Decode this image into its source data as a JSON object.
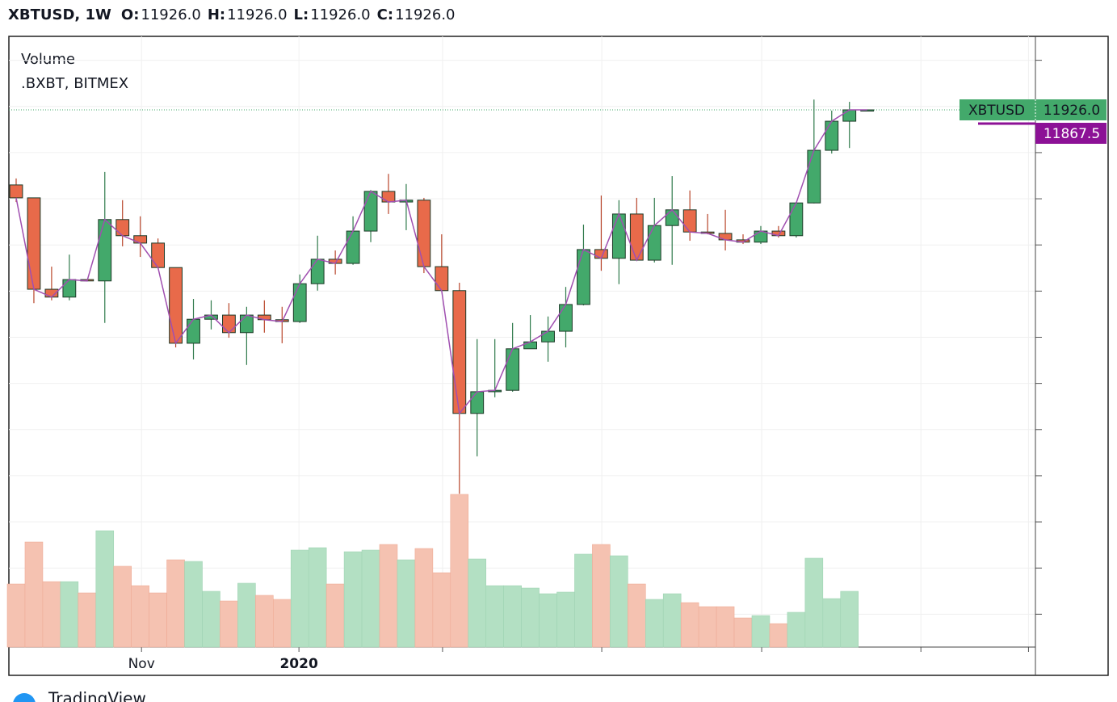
{
  "header": {
    "symbol": "XBTUSD, 1W",
    "ohlc": [
      {
        "name": "O:",
        "value": 11926,
        "label": "11926.0"
      },
      {
        "name": "H:",
        "value": 11926,
        "label": "11926.0"
      },
      {
        "name": "L:",
        "value": 11926,
        "label": "11926.0"
      },
      {
        "name": "C:",
        "value": 11926,
        "label": "11926.0"
      }
    ]
  },
  "chart_data": {
    "type": "candlestick",
    "overlay_title": "Volume",
    "overlay_source": ".BXBT, BITMEX",
    "x": [
      0,
      1,
      2,
      3,
      4,
      5,
      6,
      7,
      8,
      9,
      10,
      11,
      12,
      13,
      14,
      15,
      16,
      17,
      18,
      19,
      20,
      21,
      22,
      23,
      24,
      25,
      26,
      27,
      28,
      29,
      30,
      31,
      32,
      33,
      34,
      35,
      36,
      37,
      38,
      39,
      40,
      41,
      42,
      43,
      44,
      45,
      46,
      47,
      48
    ],
    "open": [
      10300,
      10020,
      8040,
      7870,
      8250,
      8220,
      9550,
      9200,
      9040,
      8510,
      6870,
      7390,
      7480,
      7100,
      7480,
      7380,
      7340,
      8160,
      8690,
      8600,
      9300,
      10160,
      9930,
      9970,
      8530,
      8010,
      5350,
      5820,
      5850,
      6750,
      6900,
      7130,
      7710,
      8900,
      8710,
      9670,
      8670,
      9420,
      9760,
      9280,
      9250,
      9110,
      9060,
      9300,
      9200,
      9910,
      11050,
      11680,
      11926
    ],
    "high": [
      10440,
      10020,
      8530,
      8790,
      8250,
      10580,
      9970,
      9620,
      9140,
      8510,
      7830,
      7800,
      7740,
      7660,
      7800,
      7660,
      8360,
      9200,
      8880,
      9620,
      10190,
      10540,
      10320,
      10020,
      9230,
      8180,
      6960,
      6960,
      7310,
      7480,
      7450,
      8090,
      9440,
      10070,
      9970,
      10020,
      10020,
      10490,
      10180,
      9670,
      9760,
      9230,
      9410,
      9410,
      9930,
      12150,
      11910,
      12100,
      11926
    ],
    "low": [
      9930,
      7740,
      7800,
      7800,
      8220,
      7310,
      8970,
      8740,
      8500,
      6780,
      6520,
      7170,
      6990,
      6400,
      7100,
      6870,
      7310,
      8010,
      8360,
      8570,
      9060,
      9670,
      9320,
      8390,
      8010,
      3610,
      4420,
      5700,
      5820,
      6750,
      6470,
      6780,
      7690,
      8440,
      8150,
      8670,
      8620,
      8570,
      9090,
      9230,
      8880,
      9020,
      9020,
      9160,
      9160,
      9900,
      10980,
      11100,
      11926
    ],
    "close": [
      10020,
      8040,
      7870,
      8250,
      8220,
      9550,
      9200,
      9040,
      8510,
      6870,
      7390,
      7480,
      7100,
      7480,
      7380,
      7340,
      8160,
      8690,
      8600,
      9300,
      10160,
      9930,
      9970,
      8530,
      8010,
      5350,
      5820,
      5850,
      6750,
      6900,
      7130,
      7710,
      8900,
      8710,
      9670,
      8670,
      9420,
      9760,
      9280,
      9250,
      9110,
      9060,
      9300,
      9200,
      9910,
      11050,
      11680,
      11926,
      11926
    ],
    "volume": [
      78,
      130,
      81,
      81,
      67,
      144,
      100,
      76,
      67,
      108,
      106,
      69,
      57,
      79,
      64,
      59,
      120,
      123,
      78,
      118,
      120,
      127,
      108,
      122,
      92,
      189,
      109,
      76,
      76,
      73,
      66,
      68,
      115,
      127,
      113,
      78,
      59,
      66,
      55,
      50,
      50,
      36,
      39,
      29,
      43,
      110,
      60,
      69,
      null
    ],
    "up_color": "#43a96b",
    "down_color": "#e86a4a",
    "up_volume_color": "#b3e0c3",
    "down_volume_color": "#f5c2b1",
    "close_line_color": "#a04fb0",
    "xlim": [
      -0.41,
      57.49
    ],
    "xticks": [
      {
        "value": 7.07,
        "label": "Nov"
      },
      {
        "value": 15.95,
        "label": "2020",
        "bold": true
      }
    ],
    "xticks_unlabeled": [
      24.05,
      33.03,
      42.05,
      51.03,
      57.1
    ],
    "ylim": [
      288.5,
      13518.5
    ],
    "yticks": [
      1000,
      2000,
      3000,
      4000,
      5000,
      6000,
      7000,
      8000,
      9000,
      10000,
      11000,
      12000,
      13000
    ],
    "volume_lim": [
      0,
      400
    ],
    "grid": true,
    "price_badges": [
      {
        "name": "XBTUSD",
        "value": 11926,
        "label": "11926.0",
        "color": "#43a96b"
      },
      {
        "value": 11867.5,
        "label": "11867.5",
        "color": "#8c1196"
      }
    ]
  },
  "footer": {
    "brand": "TradingView"
  }
}
